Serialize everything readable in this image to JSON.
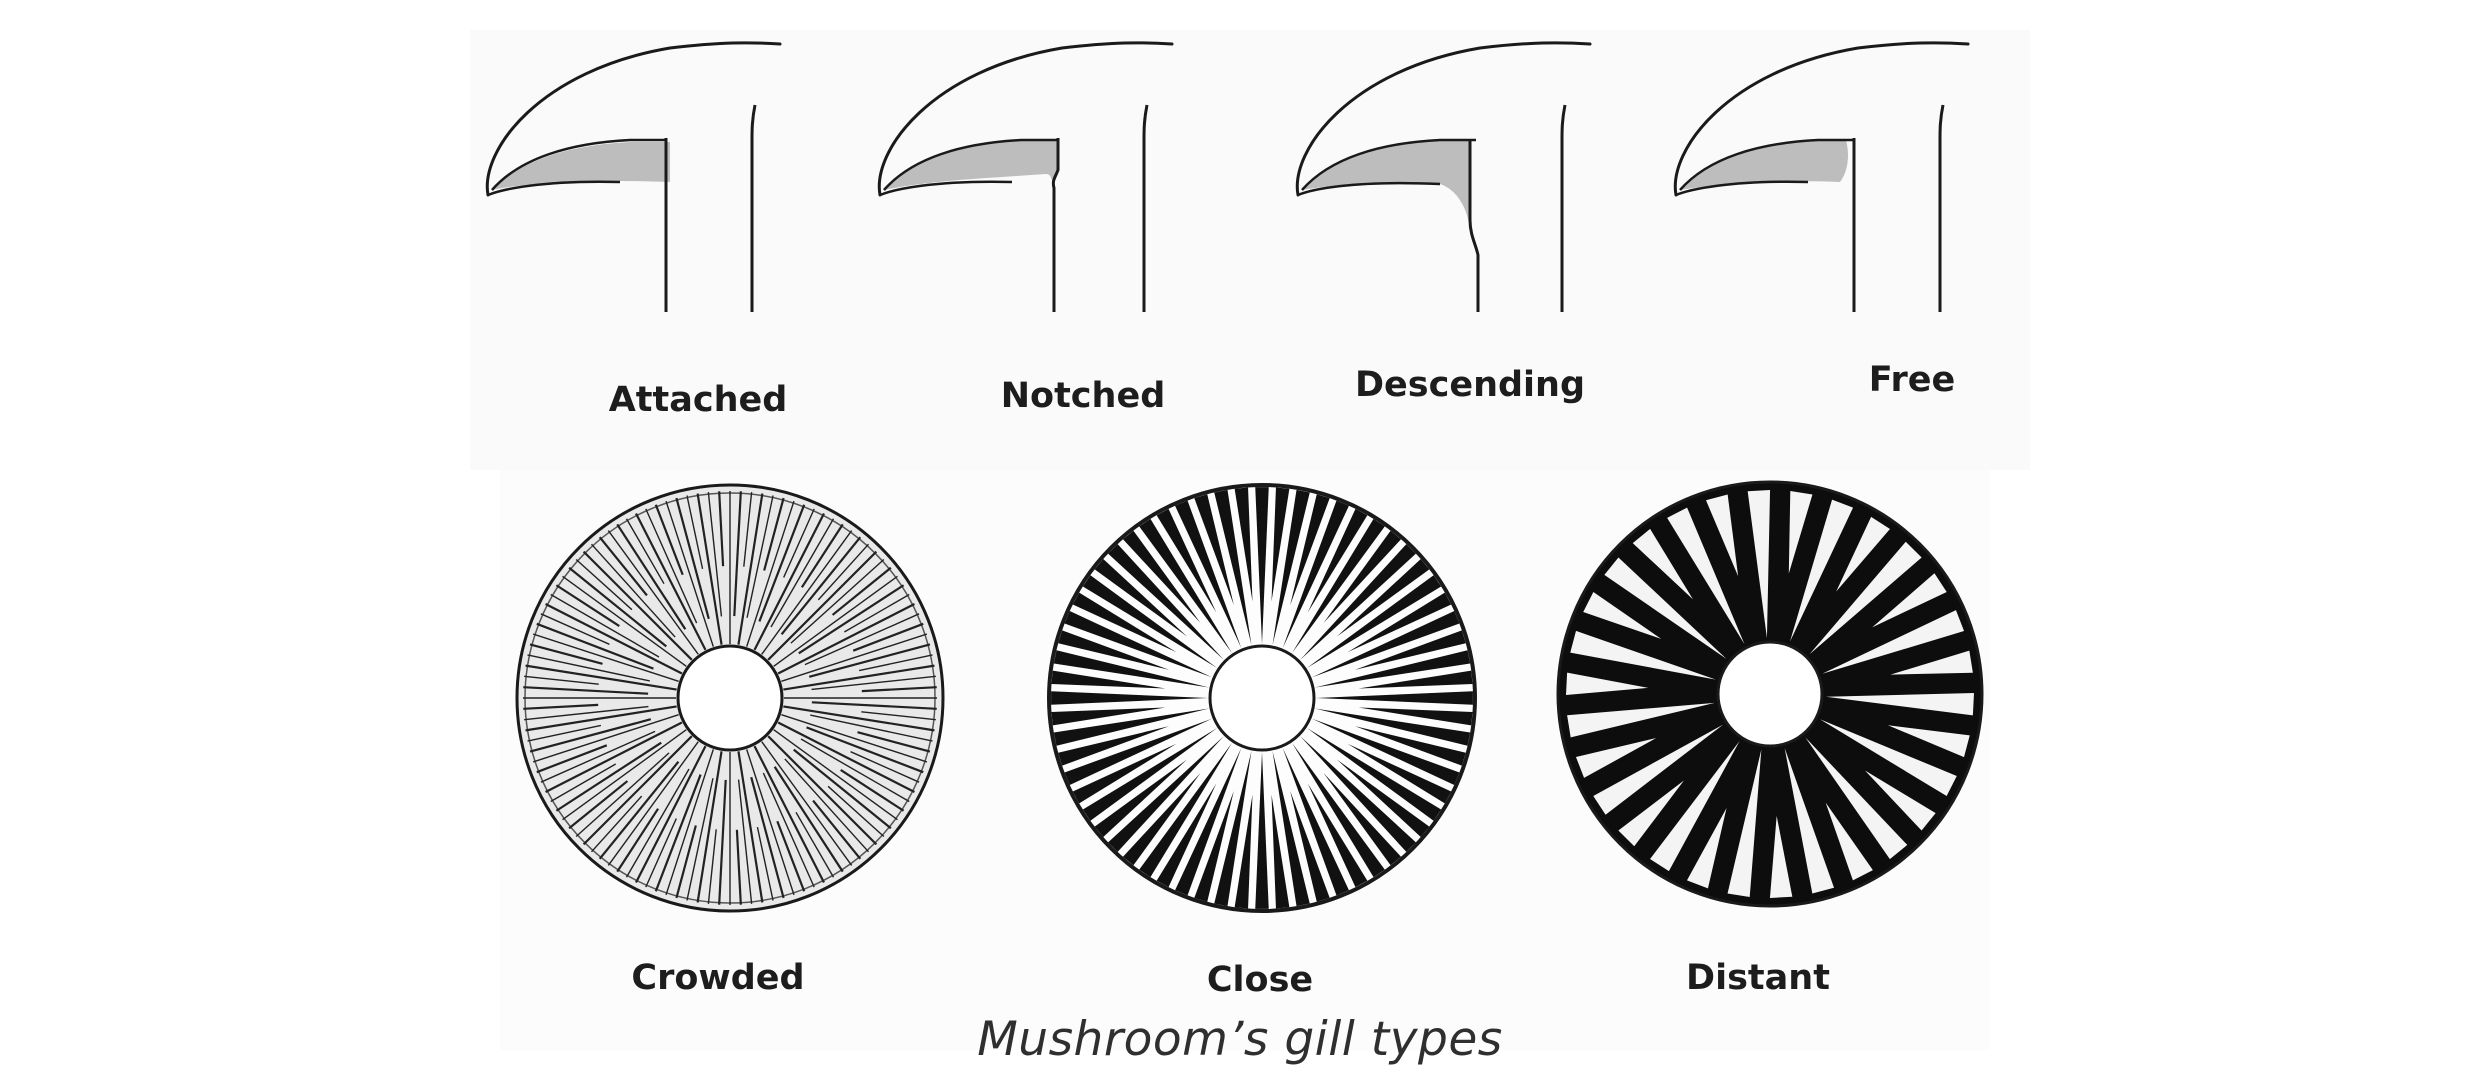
{
  "attachment_types": [
    {
      "label": "Attached",
      "icon": "gill-attached-icon"
    },
    {
      "label": "Notched",
      "icon": "gill-notched-icon"
    },
    {
      "label": "Descending",
      "icon": "gill-descending-icon"
    },
    {
      "label": "Free",
      "icon": "gill-free-icon"
    }
  ],
  "spacing_types": [
    {
      "label": "Crowded",
      "icon": "gill-crowded-icon"
    },
    {
      "label": "Close",
      "icon": "gill-close-icon"
    },
    {
      "label": "Distant",
      "icon": "gill-distant-icon"
    }
  ],
  "caption": "Mushroom’s gill types",
  "colors": {
    "ink": "#1a1a1a",
    "gill_fill": "#bdbdbd",
    "label_text": "#1d1d1d",
    "caption_text": "#2f2f2f"
  }
}
